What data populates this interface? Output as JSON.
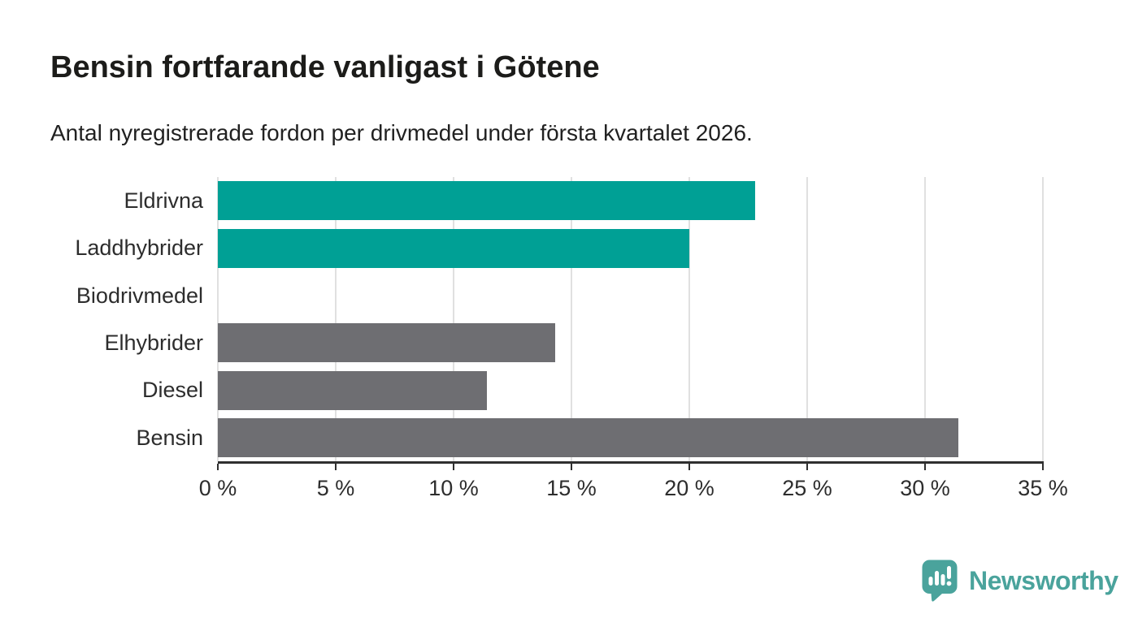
{
  "header": {
    "title": "Bensin fortfarande vanligast i Götene",
    "subtitle": "Antal nyregistrerade fordon per drivmedel under första kvartalet 2026."
  },
  "chart_data": {
    "type": "bar",
    "orientation": "horizontal",
    "title": "Bensin fortfarande vanligast i Götene",
    "subtitle": "Antal nyregistrerade fordon per drivmedel under första kvartalet 2026.",
    "categories": [
      "Eldrivna",
      "Laddhybrider",
      "Biodrivmedel",
      "Elhybrider",
      "Diesel",
      "Bensin"
    ],
    "values": [
      22.8,
      20.0,
      0,
      14.3,
      11.4,
      31.4
    ],
    "bar_colors": [
      "#00a095",
      "#00a095",
      "#6e6e72",
      "#6e6e72",
      "#6e6e72",
      "#6e6e72"
    ],
    "xlabel": "",
    "ylabel": "",
    "xlim": [
      0,
      35
    ],
    "x_ticks": [
      0,
      5,
      10,
      15,
      20,
      25,
      30,
      35
    ],
    "x_tick_labels": [
      "0 %",
      "5 %",
      "10 %",
      "15 %",
      "20 %",
      "25 %",
      "30 %",
      "35 %"
    ],
    "grid": true,
    "legend": "none"
  },
  "footer": {
    "brand": "Newsworthy",
    "brand_color": "#4aa39c"
  },
  "colors": {
    "accent_teal": "#00a095",
    "neutral_gray": "#6e6e72",
    "gridline": "#e0e0e0",
    "axis": "#2f2f2f",
    "text_dark": "#1c1c1a",
    "logo_teal": "#4aa39c"
  }
}
